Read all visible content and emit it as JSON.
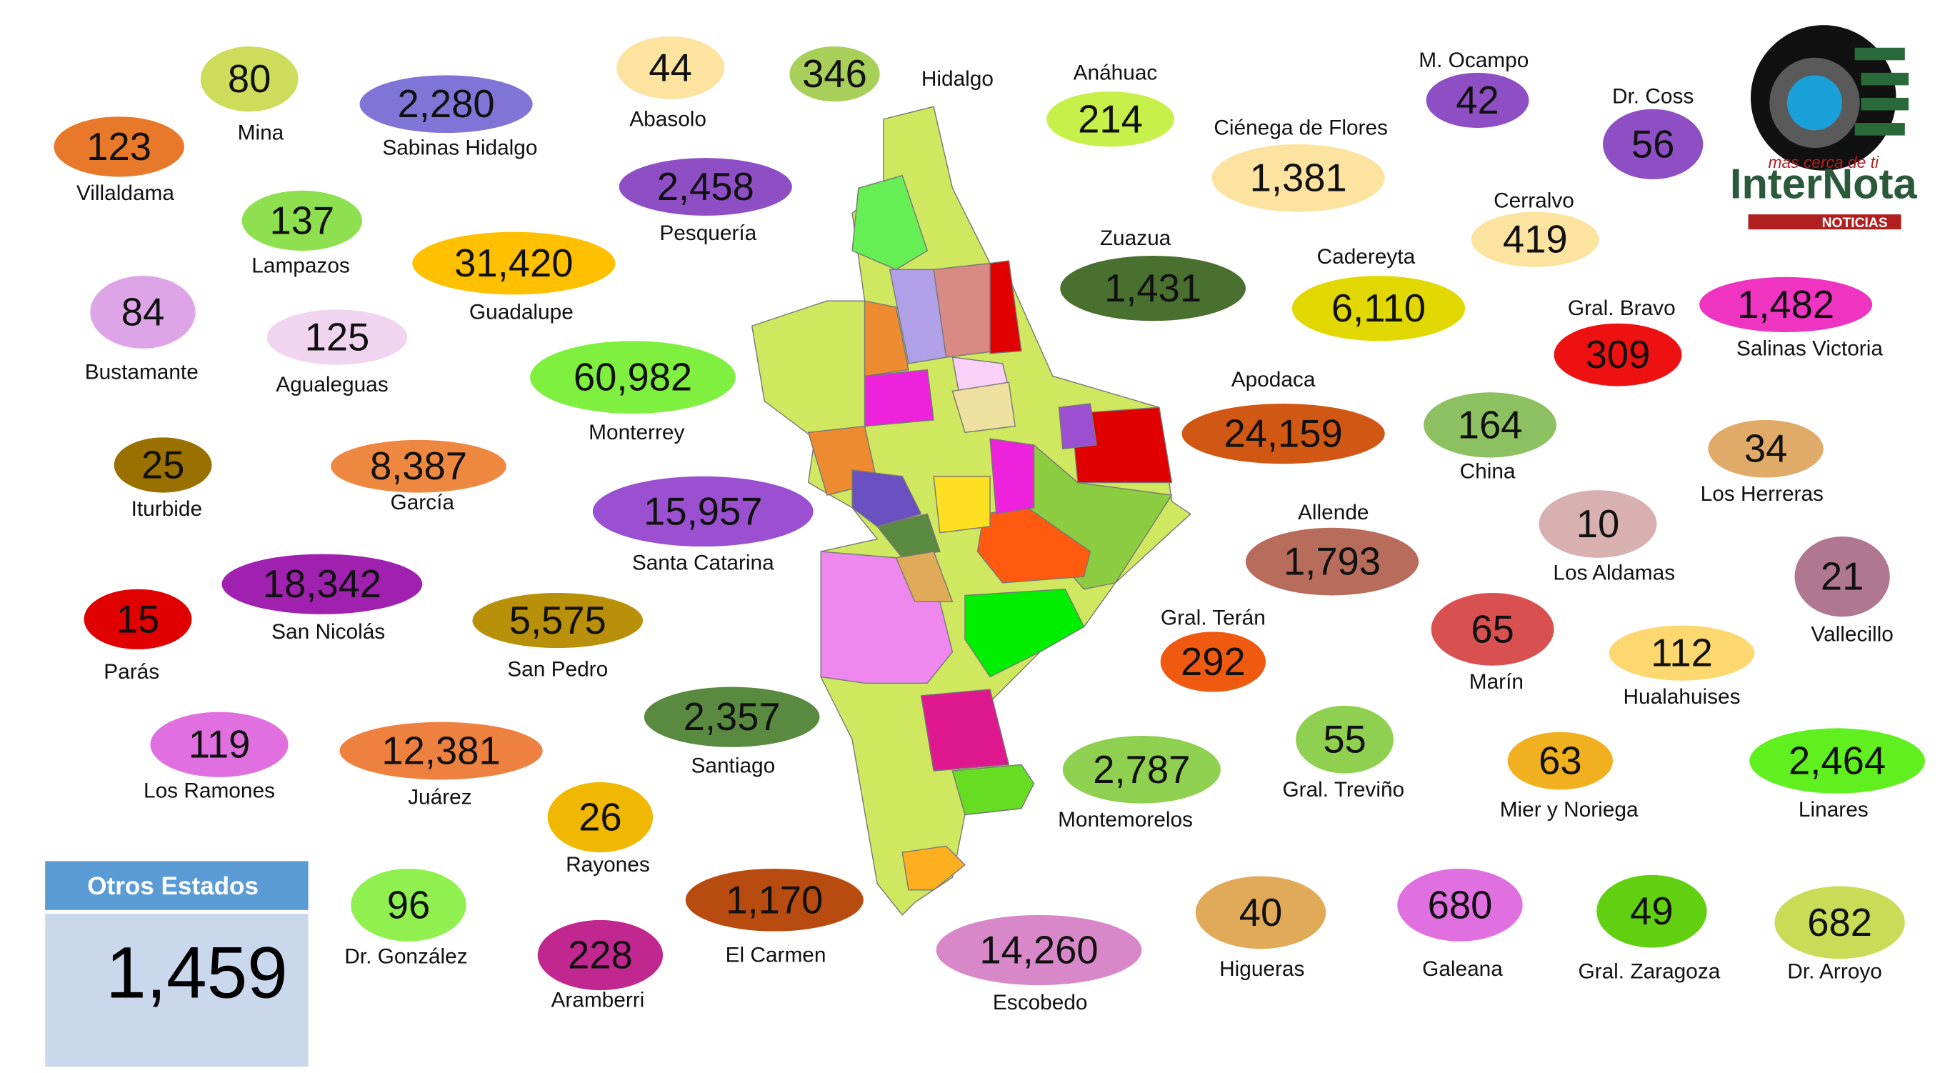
{
  "logo": {
    "tagline": "mas cerca de ti",
    "name": "InterNota",
    "sub": "NOTICIAS"
  },
  "otros_estados": {
    "label": "Otros Estados",
    "value": "1,459"
  },
  "municipalities": [
    {
      "name": "Mina",
      "value": "80",
      "color": "#cddc5a"
    },
    {
      "name": "Villaldama",
      "value": "123",
      "color": "#e8792a"
    },
    {
      "name": "Sabinas Hidalgo",
      "value": "2,280",
      "color": "#8075d6"
    },
    {
      "name": "Abasolo",
      "value": "44",
      "color": "#fde3a0"
    },
    {
      "name": "Hidalgo",
      "value": "346",
      "color": "#a8cf5a"
    },
    {
      "name": "Anáhuac",
      "value": "214",
      "color": "#c8f04a"
    },
    {
      "name": "M. Ocampo",
      "value": "42",
      "color": "#8e4fc4"
    },
    {
      "name": "Dr. Coss",
      "value": "56",
      "color": "#8e4fc4"
    },
    {
      "name": "Ciénega de Flores",
      "value": "1,381",
      "color": "#fde3a0"
    },
    {
      "name": "Pesquería",
      "value": "2,458",
      "color": "#8e4fc4"
    },
    {
      "name": "Lampazos",
      "value": "137",
      "color": "#8ee050"
    },
    {
      "name": "Guadalupe",
      "value": "31,420",
      "color": "#ffc000"
    },
    {
      "name": "Zuazua",
      "value": "1,431",
      "color": "#4a7030"
    },
    {
      "name": "Cadereyta",
      "value": "6,110",
      "color": "#e0d800"
    },
    {
      "name": "Cerralvo",
      "value": "419",
      "color": "#fde3a0"
    },
    {
      "name": "Gral. Bravo",
      "value": "309",
      "color": "#ee1111"
    },
    {
      "name": "Salinas Victoria",
      "value": "1,482",
      "color": "#ee34c0"
    },
    {
      "name": "Bustamante",
      "value": "84",
      "color": "#dea4e8"
    },
    {
      "name": "Agualeguas",
      "value": "125",
      "color": "#f0d4f0"
    },
    {
      "name": "Monterrey",
      "value": "60,982",
      "color": "#80f040"
    },
    {
      "name": "Apodaca",
      "value": "24,159",
      "color": "#d05814"
    },
    {
      "name": "China",
      "value": "164",
      "color": "#8cc060"
    },
    {
      "name": "Los Herreras",
      "value": "34",
      "color": "#e0aa68"
    },
    {
      "name": "Iturbide",
      "value": "25",
      "color": "#9a7000"
    },
    {
      "name": "García",
      "value": "8,387",
      "color": "#ee8840"
    },
    {
      "name": "Santa Catarina",
      "value": "15,957",
      "color": "#9a50d0"
    },
    {
      "name": "Allende",
      "value": "1,793",
      "color": "#b86c5c"
    },
    {
      "name": "Los Aldamas",
      "value": "10",
      "color": "#d8b0b0"
    },
    {
      "name": "Vallecillo",
      "value": "21",
      "color": "#b07890"
    },
    {
      "name": "Parás",
      "value": "15",
      "color": "#e00000"
    },
    {
      "name": "San Nicolás",
      "value": "18,342",
      "color": "#a020b0"
    },
    {
      "name": "San Pedro",
      "value": "5,575",
      "color": "#b8900a"
    },
    {
      "name": "Gral. Terán",
      "value": "292",
      "color": "#f05a10"
    },
    {
      "name": "Marín",
      "value": "65",
      "color": "#d85050"
    },
    {
      "name": "Hualahuises",
      "value": "112",
      "color": "#fdd870"
    },
    {
      "name": "Los Ramones",
      "value": "119",
      "color": "#e070e0"
    },
    {
      "name": "Juárez",
      "value": "12,381",
      "color": "#ee8040"
    },
    {
      "name": "Santiago",
      "value": "2,357",
      "color": "#5a8a40"
    },
    {
      "name": "Gral. Treviño",
      "value": "55",
      "color": "#90d050"
    },
    {
      "name": "Montemorelos",
      "value": "2,787",
      "color": "#90d050"
    },
    {
      "name": "Mier y Noriega",
      "value": "63",
      "color": "#f0b020"
    },
    {
      "name": "Linares",
      "value": "2,464",
      "color": "#60f020"
    },
    {
      "name": "Rayones",
      "value": "26",
      "color": "#f0b800"
    },
    {
      "name": "Dr. González",
      "value": "96",
      "color": "#90f050"
    },
    {
      "name": "El Carmen",
      "value": "1,170",
      "color": "#b84c10"
    },
    {
      "name": "Aramberri",
      "value": "228",
      "color": "#c02890"
    },
    {
      "name": "Escobedo",
      "value": "14,260",
      "color": "#d888c8"
    },
    {
      "name": "Higueras",
      "value": "40",
      "color": "#e0aa58"
    },
    {
      "name": "Galeana",
      "value": "680",
      "color": "#e070e0"
    },
    {
      "name": "Gral. Zaragoza",
      "value": "49",
      "color": "#60d010"
    },
    {
      "name": "Dr. Arroyo",
      "value": "682",
      "color": "#c8dc58"
    }
  ]
}
